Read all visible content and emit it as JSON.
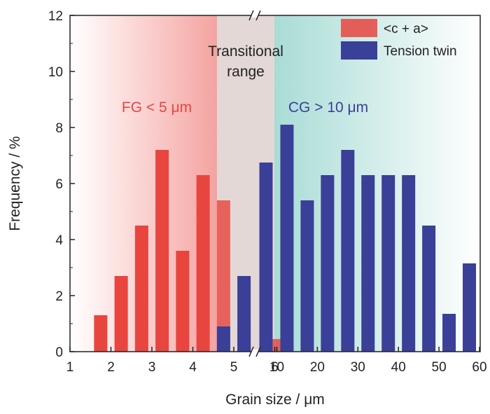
{
  "chart_data": {
    "type": "bar",
    "xlabel": "Grain size / μm",
    "ylabel": "Frequency / %",
    "ylim": [
      0,
      12
    ],
    "y_ticks": [
      "0",
      "2",
      "4",
      "6",
      "8",
      "10",
      "12"
    ],
    "axis_break": "between 6 and 10",
    "fine_x_ticks": [
      "1",
      "2",
      "3",
      "4",
      "5",
      "6"
    ],
    "coarse_x_ticks": [
      "10",
      "20",
      "30",
      "40",
      "50",
      "60"
    ],
    "grid": false,
    "legend_position": "top-right",
    "series": [
      {
        "name": "<c + a>",
        "color": "#e8453f",
        "points": [
          {
            "x": 1.75,
            "y": 1.3
          },
          {
            "x": 2.25,
            "y": 2.7
          },
          {
            "x": 2.75,
            "y": 4.5
          },
          {
            "x": 3.25,
            "y": 7.2
          },
          {
            "x": 3.75,
            "y": 3.6
          },
          {
            "x": 4.25,
            "y": 6.3
          },
          {
            "x": 4.75,
            "y": 5.4
          },
          {
            "x": 5.25,
            "y": 0.9
          },
          {
            "x": 10,
            "y": 0.45
          }
        ]
      },
      {
        "name": "Tension twin",
        "color": "#3a3f98",
        "points": [
          {
            "x": 4.75,
            "y": 0.9
          },
          {
            "x": 5.25,
            "y": 2.7
          },
          {
            "x": 9,
            "y": 6.75
          },
          {
            "x": 12.5,
            "y": 8.1
          },
          {
            "x": 17.5,
            "y": 5.4
          },
          {
            "x": 22.5,
            "y": 6.3
          },
          {
            "x": 27.5,
            "y": 7.2
          },
          {
            "x": 32.5,
            "y": 6.3
          },
          {
            "x": 37.5,
            "y": 6.3
          },
          {
            "x": 42.5,
            "y": 6.3
          },
          {
            "x": 47.5,
            "y": 4.5
          },
          {
            "x": 52.5,
            "y": 1.35
          },
          {
            "x": 57.5,
            "y": 3.15
          }
        ]
      }
    ],
    "regions": [
      {
        "label": "FG < 5 μm",
        "color": "#e8453f"
      },
      {
        "label_lines": [
          "Transitional",
          "range"
        ],
        "color": "#222222"
      },
      {
        "label": "CG > 10 μm",
        "color": "#3a3f98"
      }
    ]
  }
}
